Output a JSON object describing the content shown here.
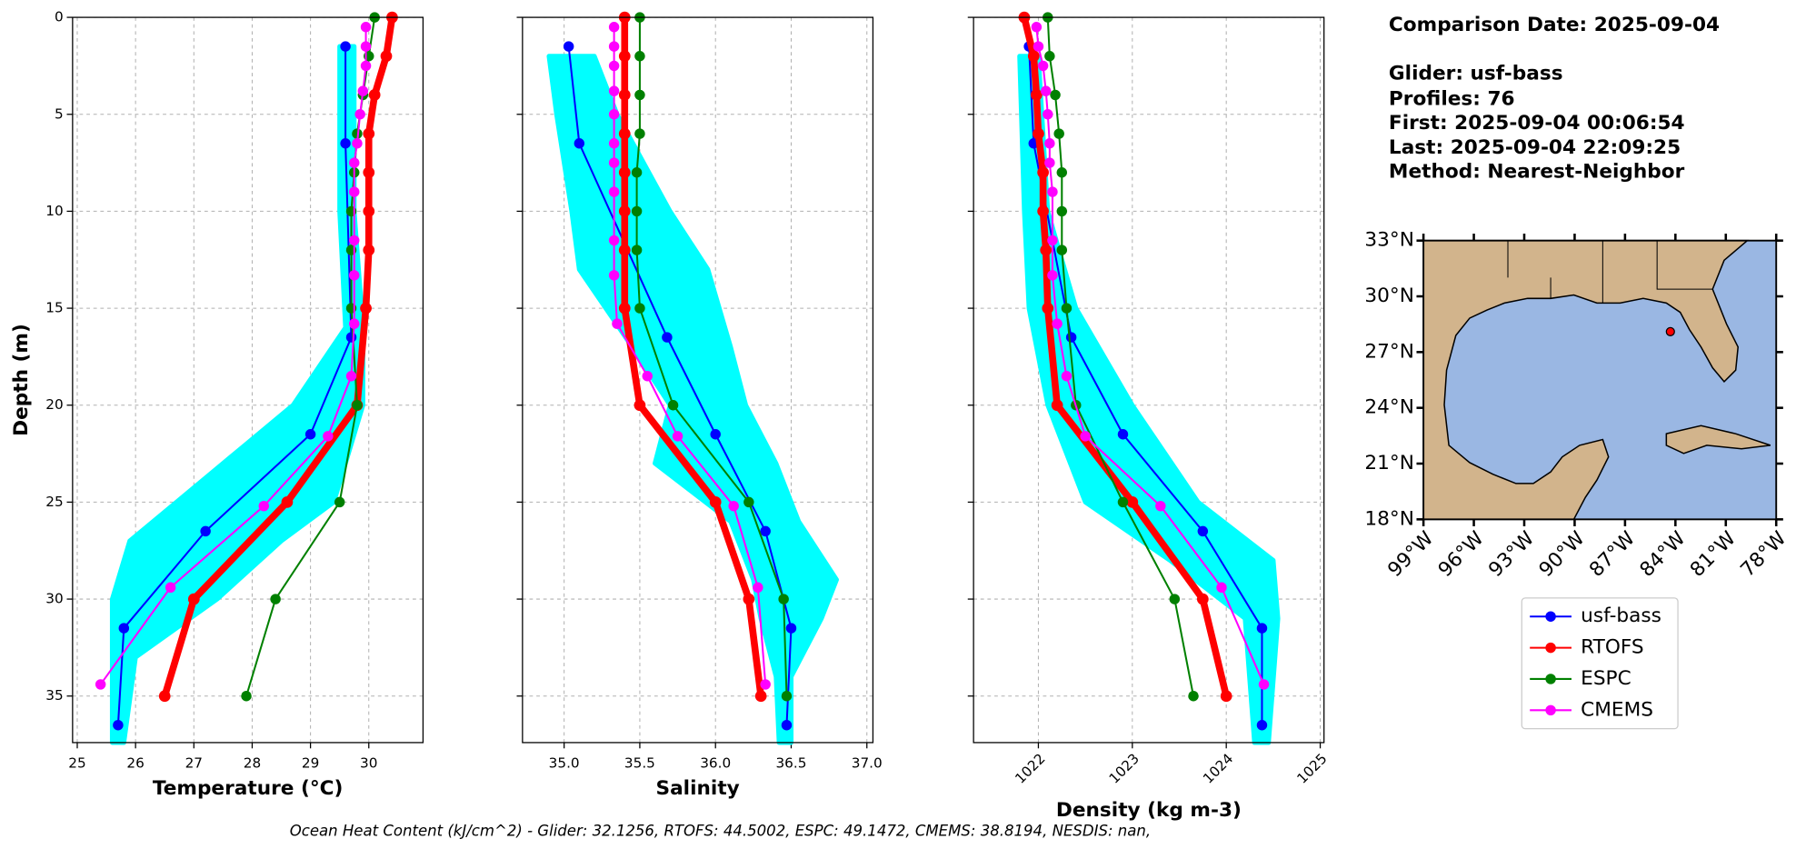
{
  "info": {
    "lines": [
      "Comparison Date: 2025-09-04",
      "Glider: usf-bass",
      "Profiles: 76",
      "First: 2025-09-04 00:06:54",
      "Last: 2025-09-04 22:09:25",
      "Method: Nearest-Neighbor"
    ]
  },
  "footer": "Ocean Heat Content (kJ/cm^2) - Glider: 32.1256,  RTOFS: 44.5002,  ESPC: 49.1472,  CMEMS: 38.8194,  NESDIS: nan,",
  "chart_data": [
    {
      "type": "line",
      "xlabel": "Temperature (°C)",
      "ylabel": "Depth (m)",
      "xlim": [
        24.92,
        30.93
      ],
      "xticks": [
        25,
        26,
        27,
        28,
        29,
        30
      ],
      "ylim": [
        37.4,
        0
      ],
      "yticks": [
        0,
        5,
        10,
        15,
        20,
        25,
        30,
        35
      ],
      "grid": true,
      "tick_labels_y": true,
      "cloud": {
        "color": "#00ffff",
        "depth": [
          1.5,
          10,
          16,
          20,
          22,
          25,
          27,
          30,
          33,
          37.4
        ],
        "min": [
          29.5,
          29.5,
          29.6,
          28.7,
          27.9,
          26.7,
          25.9,
          25.6,
          25.6,
          25.6
        ],
        "max": [
          29.75,
          29.75,
          29.9,
          29.9,
          29.7,
          29.4,
          28.5,
          27.4,
          26.0,
          25.8
        ]
      },
      "series": [
        {
          "name": "usf-bass",
          "color": "#0000ff",
          "depth": [
            1.5,
            6.5,
            16.5,
            21.5,
            26.5,
            31.5,
            36.5
          ],
          "values": [
            29.6,
            29.6,
            29.7,
            29.0,
            27.2,
            25.8,
            25.7
          ]
        },
        {
          "name": "RTOFS",
          "color": "#ff0000",
          "depth": [
            0,
            2,
            4,
            6,
            8,
            10,
            12,
            15,
            20,
            25,
            30,
            35
          ],
          "values": [
            30.4,
            30.3,
            30.1,
            30.0,
            30.0,
            30.0,
            30.0,
            29.95,
            29.8,
            28.6,
            27.0,
            26.5
          ]
        },
        {
          "name": "ESPC",
          "color": "#008000",
          "depth": [
            0,
            2,
            4,
            6,
            8,
            10,
            12,
            15,
            20,
            25,
            30,
            35
          ],
          "values": [
            30.1,
            30.0,
            29.9,
            29.8,
            29.75,
            29.7,
            29.7,
            29.7,
            29.8,
            29.5,
            28.4,
            27.9
          ]
        },
        {
          "name": "CMEMS",
          "color": "#ff00ff",
          "depth": [
            0.5,
            1.5,
            2.5,
            3.8,
            5,
            6.5,
            7.5,
            9,
            11.5,
            13.3,
            15.8,
            18.5,
            21.6,
            25.2,
            29.4,
            34.4
          ],
          "values": [
            29.95,
            29.95,
            29.95,
            29.9,
            29.85,
            29.8,
            29.75,
            29.75,
            29.75,
            29.75,
            29.75,
            29.7,
            29.3,
            28.2,
            26.6,
            25.4
          ]
        }
      ]
    },
    {
      "type": "line",
      "xlabel": "Salinity",
      "xlim": [
        34.725,
        37.04
      ],
      "xticks": [
        {
          "value": 35,
          "label": "35.0"
        },
        35.5,
        {
          "value": 36,
          "label": "36.0"
        },
        36.5,
        {
          "value": 37,
          "label": "37.0"
        }
      ],
      "ylim": [
        37.4,
        0
      ],
      "yticks": [
        0,
        5,
        10,
        15,
        20,
        25,
        30,
        35
      ],
      "grid": true,
      "tick_labels_y": false,
      "cloud": {
        "color": "#00ffff",
        "depth": [
          2,
          5,
          10,
          13,
          17,
          20,
          23,
          26,
          29,
          31,
          34,
          37.4
        ],
        "min": [
          34.9,
          34.95,
          35.05,
          35.1,
          35.45,
          35.7,
          35.6,
          36.1,
          36.25,
          36.3,
          36.4,
          36.42
        ],
        "max": [
          35.2,
          35.35,
          35.7,
          35.95,
          36.1,
          36.2,
          36.4,
          36.55,
          36.8,
          36.7,
          36.5,
          36.5
        ]
      },
      "series": [
        {
          "name": "usf-bass",
          "color": "#0000ff",
          "depth": [
            1.5,
            6.5,
            16.5,
            21.5,
            26.5,
            31.5,
            36.5
          ],
          "values": [
            35.03,
            35.1,
            35.68,
            36.0,
            36.33,
            36.5,
            36.47
          ]
        },
        {
          "name": "RTOFS",
          "color": "#ff0000",
          "depth": [
            0,
            2,
            4,
            6,
            8,
            10,
            12,
            15,
            20,
            25,
            30,
            35
          ],
          "values": [
            35.4,
            35.4,
            35.4,
            35.4,
            35.4,
            35.4,
            35.4,
            35.4,
            35.5,
            36.0,
            36.22,
            36.3
          ]
        },
        {
          "name": "ESPC",
          "color": "#008000",
          "depth": [
            0,
            2,
            4,
            6,
            8,
            10,
            12,
            15,
            20,
            25,
            30,
            35
          ],
          "values": [
            35.5,
            35.5,
            35.5,
            35.5,
            35.48,
            35.48,
            35.48,
            35.5,
            35.72,
            36.22,
            36.45,
            36.47
          ]
        },
        {
          "name": "CMEMS",
          "color": "#ff00ff",
          "depth": [
            0.5,
            1.5,
            2.5,
            3.8,
            5,
            6.5,
            7.5,
            9,
            11.5,
            13.3,
            15.8,
            18.5,
            21.6,
            25.2,
            29.4,
            34.4
          ],
          "values": [
            35.33,
            35.33,
            35.33,
            35.33,
            35.33,
            35.33,
            35.33,
            35.33,
            35.33,
            35.33,
            35.35,
            35.55,
            35.75,
            36.12,
            36.28,
            36.33
          ]
        }
      ]
    },
    {
      "type": "line",
      "xlabel": "Density (kg m-3)",
      "xlim": [
        1021.31,
        1025.04
      ],
      "xticks": [
        1022,
        1023,
        1024,
        1025
      ],
      "tick_rotation": 45,
      "ylim": [
        37.4,
        0
      ],
      "yticks": [
        0,
        5,
        10,
        15,
        20,
        25,
        30,
        35
      ],
      "grid": true,
      "tick_labels_y": false,
      "cloud": {
        "color": "#00ffff",
        "depth": [
          2,
          10,
          15,
          20,
          25,
          28,
          31,
          37.4
        ],
        "min": [
          1021.8,
          1021.85,
          1021.9,
          1022.1,
          1022.5,
          1023.4,
          1024.2,
          1024.3
        ],
        "max": [
          1022.0,
          1022.1,
          1022.4,
          1023.0,
          1023.7,
          1024.5,
          1024.55,
          1024.45
        ]
      },
      "series": [
        {
          "name": "usf-bass",
          "color": "#0000ff",
          "depth": [
            1.5,
            6.5,
            16.5,
            21.5,
            26.5,
            31.5,
            36.5
          ],
          "values": [
            1021.9,
            1021.95,
            1022.35,
            1022.9,
            1023.75,
            1024.38,
            1024.38
          ]
        },
        {
          "name": "RTOFS",
          "color": "#ff0000",
          "depth": [
            0,
            2,
            4,
            6,
            8,
            10,
            12,
            15,
            20,
            25,
            30,
            35
          ],
          "values": [
            1021.85,
            1021.95,
            1021.98,
            1022.0,
            1022.05,
            1022.05,
            1022.08,
            1022.1,
            1022.2,
            1023.0,
            1023.75,
            1024.0
          ]
        },
        {
          "name": "ESPC",
          "color": "#008000",
          "depth": [
            0,
            2,
            4,
            6,
            8,
            10,
            12,
            15,
            20,
            25,
            30,
            35
          ],
          "values": [
            1022.1,
            1022.12,
            1022.18,
            1022.22,
            1022.25,
            1022.25,
            1022.25,
            1022.3,
            1022.4,
            1022.9,
            1023.45,
            1023.65
          ]
        },
        {
          "name": "CMEMS",
          "color": "#ff00ff",
          "depth": [
            0.5,
            1.5,
            2.5,
            3.8,
            5,
            6.5,
            7.5,
            9,
            11.5,
            13.3,
            15.8,
            18.5,
            21.6,
            25.2,
            29.4,
            34.4
          ],
          "values": [
            1021.98,
            1022.0,
            1022.05,
            1022.08,
            1022.1,
            1022.12,
            1022.12,
            1022.15,
            1022.15,
            1022.15,
            1022.2,
            1022.3,
            1022.5,
            1023.3,
            1023.95,
            1024.4
          ]
        }
      ]
    },
    {
      "type": "map",
      "xlim": [
        -99,
        -78
      ],
      "ylim": [
        18,
        33
      ],
      "xticks": [
        {
          "value": -99,
          "label": "99°W"
        },
        {
          "value": -96,
          "label": "96°W"
        },
        {
          "value": -93,
          "label": "93°W"
        },
        {
          "value": -90,
          "label": "90°W"
        },
        {
          "value": -87,
          "label": "87°W"
        },
        {
          "value": -84,
          "label": "84°W"
        },
        {
          "value": -81,
          "label": "81°W"
        },
        {
          "value": -78,
          "label": "78°W"
        }
      ],
      "yticks": [
        {
          "value": 18,
          "label": "18°N"
        },
        {
          "value": 21,
          "label": "21°N"
        },
        {
          "value": 24,
          "label": "24°N"
        },
        {
          "value": 27,
          "label": "27°N"
        },
        {
          "value": 30,
          "label": "30°N"
        },
        {
          "value": 33,
          "label": "33°N"
        }
      ],
      "marker": {
        "lon": -84.3,
        "lat": 28.1,
        "color": "#ff0000"
      }
    }
  ]
}
